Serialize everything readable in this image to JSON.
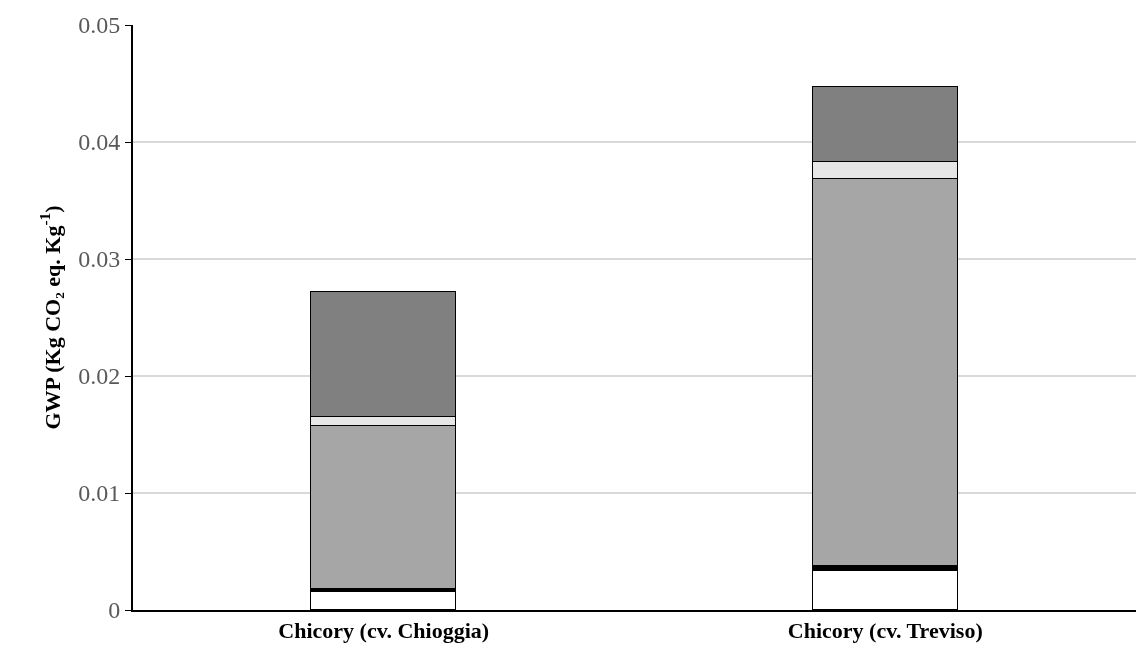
{
  "chart_data": {
    "type": "bar",
    "stacked": true,
    "ylabel": "GWP (Kg CO₂ eq. Kg$^{-1}$)",
    "categories": [
      "Chicory (cv. Chioggia)",
      "Chicory (cv. Treviso)"
    ],
    "series": [
      {
        "color": "#ffffff",
        "values": [
          0.0015,
          0.0033
        ]
      },
      {
        "color": "#000000",
        "values": [
          0.0003,
          0.0005
        ]
      },
      {
        "color": "#a6a6a6",
        "values": [
          0.0139,
          0.033
        ]
      },
      {
        "color": "#e6e6e6",
        "values": [
          0.0008,
          0.0015
        ]
      },
      {
        "color": "#808080",
        "values": [
          0.0107,
          0.0064
        ]
      }
    ],
    "ylim": [
      0,
      0.05
    ],
    "yticks": [
      0,
      0.01,
      0.02,
      0.03,
      0.04,
      0.05
    ],
    "grid": "y"
  }
}
